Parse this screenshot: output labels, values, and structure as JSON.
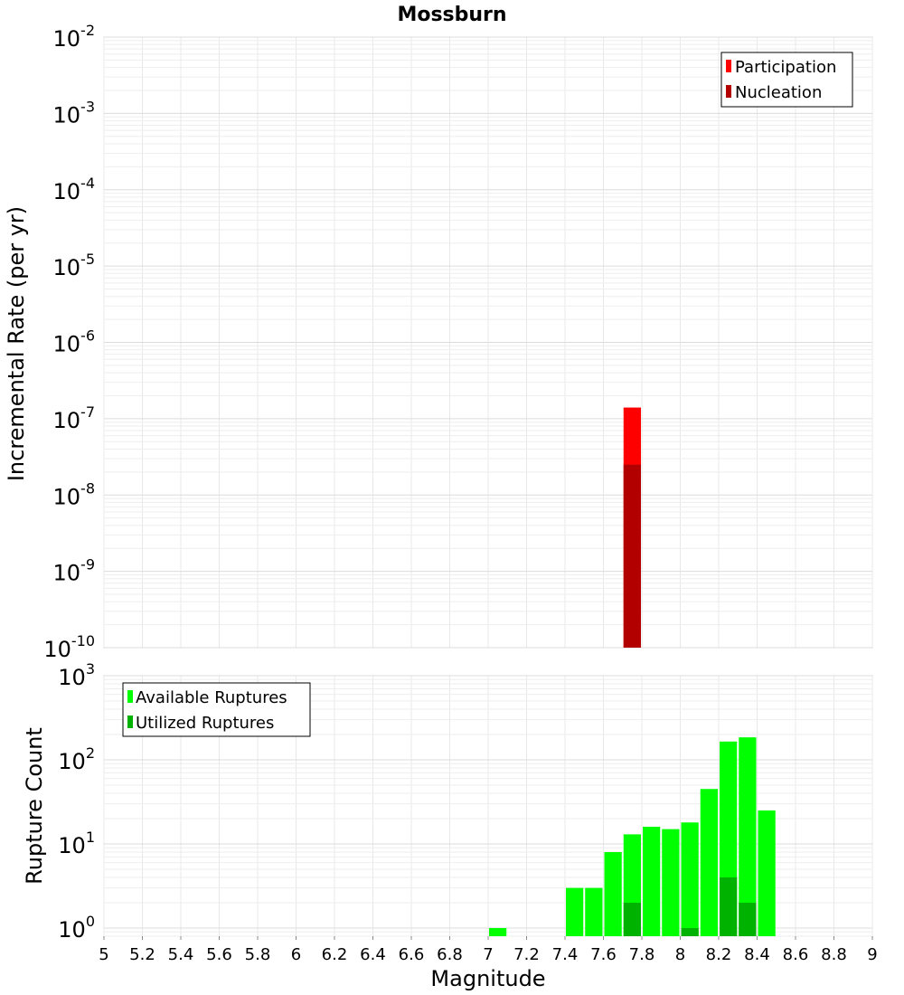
{
  "chart_data": [
    {
      "type": "bar",
      "title": "Mossburn",
      "ylabel": "Incremental Rate (per yr)",
      "xlabel": "",
      "y_scale": "log",
      "ylim": [
        1e-10,
        0.01
      ],
      "y_ticks": [
        {
          "base": "10",
          "exp": "-10"
        },
        {
          "base": "10",
          "exp": "-9"
        },
        {
          "base": "10",
          "exp": "-8"
        },
        {
          "base": "10",
          "exp": "-7"
        },
        {
          "base": "10",
          "exp": "-6"
        },
        {
          "base": "10",
          "exp": "-5"
        },
        {
          "base": "10",
          "exp": "-4"
        },
        {
          "base": "10",
          "exp": "-3"
        },
        {
          "base": "10",
          "exp": "-2"
        }
      ],
      "xlim": [
        5,
        9
      ],
      "bin_width": 0.1,
      "grid": true,
      "legend_position": "top-right",
      "series": [
        {
          "name": "Participation",
          "color": "#ff0000",
          "x": [
            7.75
          ],
          "values": [
            1.4e-07
          ]
        },
        {
          "name": "Nucleation",
          "color": "#b20000",
          "x": [
            7.75
          ],
          "values": [
            2.5e-08
          ]
        }
      ]
    },
    {
      "type": "bar",
      "title": "",
      "ylabel": "Rupture Count",
      "xlabel": "Magnitude",
      "y_scale": "log",
      "ylim": [
        0.8,
        1000
      ],
      "y_ticks": [
        {
          "base": "10",
          "exp": "0"
        },
        {
          "base": "10",
          "exp": "1"
        },
        {
          "base": "10",
          "exp": "2"
        },
        {
          "base": "10",
          "exp": "3"
        }
      ],
      "xlim": [
        5,
        9
      ],
      "x_ticks": [
        "5",
        "5.2",
        "5.4",
        "5.6",
        "5.8",
        "6",
        "6.2",
        "6.4",
        "6.6",
        "6.8",
        "7",
        "7.2",
        "7.4",
        "7.6",
        "7.8",
        "8",
        "8.2",
        "8.4",
        "8.6",
        "8.8",
        "9"
      ],
      "bin_width": 0.1,
      "grid": true,
      "legend_position": "top-left",
      "series": [
        {
          "name": "Available Ruptures",
          "color": "#00ff00",
          "x": [
            7.05,
            7.45,
            7.55,
            7.65,
            7.75,
            7.85,
            7.95,
            8.05,
            8.15,
            8.25,
            8.35,
            8.45
          ],
          "values": [
            1,
            3,
            3,
            8,
            13,
            16,
            15,
            18,
            45,
            165,
            185,
            25
          ]
        },
        {
          "name": "Utilized Ruptures",
          "color": "#00b200",
          "x": [
            7.75,
            8.05,
            8.25,
            8.35
          ],
          "values": [
            2,
            1,
            4,
            2
          ]
        }
      ]
    }
  ]
}
